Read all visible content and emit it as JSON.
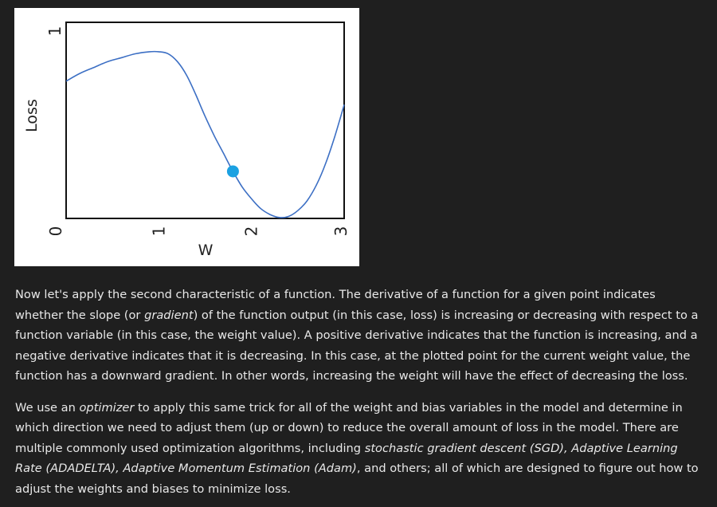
{
  "chart_data": {
    "type": "line",
    "ylabel": "Loss",
    "xlabel": "W",
    "xlim": [
      0,
      3
    ],
    "ylim": [
      0,
      1
    ],
    "x_ticks": [
      "0",
      "1",
      "2",
      "3"
    ],
    "y_ticks": [
      "1"
    ],
    "grid": false,
    "series": [
      {
        "x": [
          0.0,
          0.15,
          0.3,
          0.45,
          0.6,
          0.75,
          0.9,
          1.0,
          1.1,
          1.2,
          1.3,
          1.4,
          1.5,
          1.6,
          1.7,
          1.8,
          1.9,
          2.0,
          2.1,
          2.2,
          2.3,
          2.4,
          2.5,
          2.6,
          2.7,
          2.8,
          2.9,
          3.0
        ],
        "y": [
          0.7,
          0.74,
          0.77,
          0.8,
          0.82,
          0.84,
          0.85,
          0.85,
          0.84,
          0.8,
          0.73,
          0.63,
          0.52,
          0.42,
          0.33,
          0.24,
          0.16,
          0.1,
          0.05,
          0.02,
          0.005,
          0.01,
          0.04,
          0.09,
          0.17,
          0.28,
          0.42,
          0.58
        ],
        "color": "#3c6fc4"
      }
    ],
    "highlight_point": {
      "x": 1.8,
      "y": 0.24,
      "color": "#1ba1e2"
    }
  },
  "article": {
    "p1": {
      "t1": "Now let's apply the second characteristic of a function. The derivative of a function for a given point indicates whether the slope (or ",
      "em1": "gradient",
      "t2": ") of the function output (in this case, loss) is increasing or decreasing with respect to a function variable (in this case, the weight value). A positive derivative indicates that the function is increasing, and a negative derivative indicates that it is decreasing. In this case, at the plotted point for the current weight value, the function has a downward gradient. In other words, increasing the weight will have the effect of decreasing the loss."
    },
    "p2": {
      "t1": "We use an ",
      "em1": "optimizer",
      "t2": " to apply this same trick for all of the weight and bias variables in the model and determine in which direction we need to adjust them (up or down) to reduce the overall amount of loss in the model. There are multiple commonly used optimization algorithms, including ",
      "em2": "stochastic gradient descent (SGD), Adaptive Learning Rate (ADADELTA), Adaptive Momentum Estimation (Adam)",
      "t3": ", and others; all of which are designed to figure out how to adjust the weights and biases to minimize loss."
    }
  }
}
